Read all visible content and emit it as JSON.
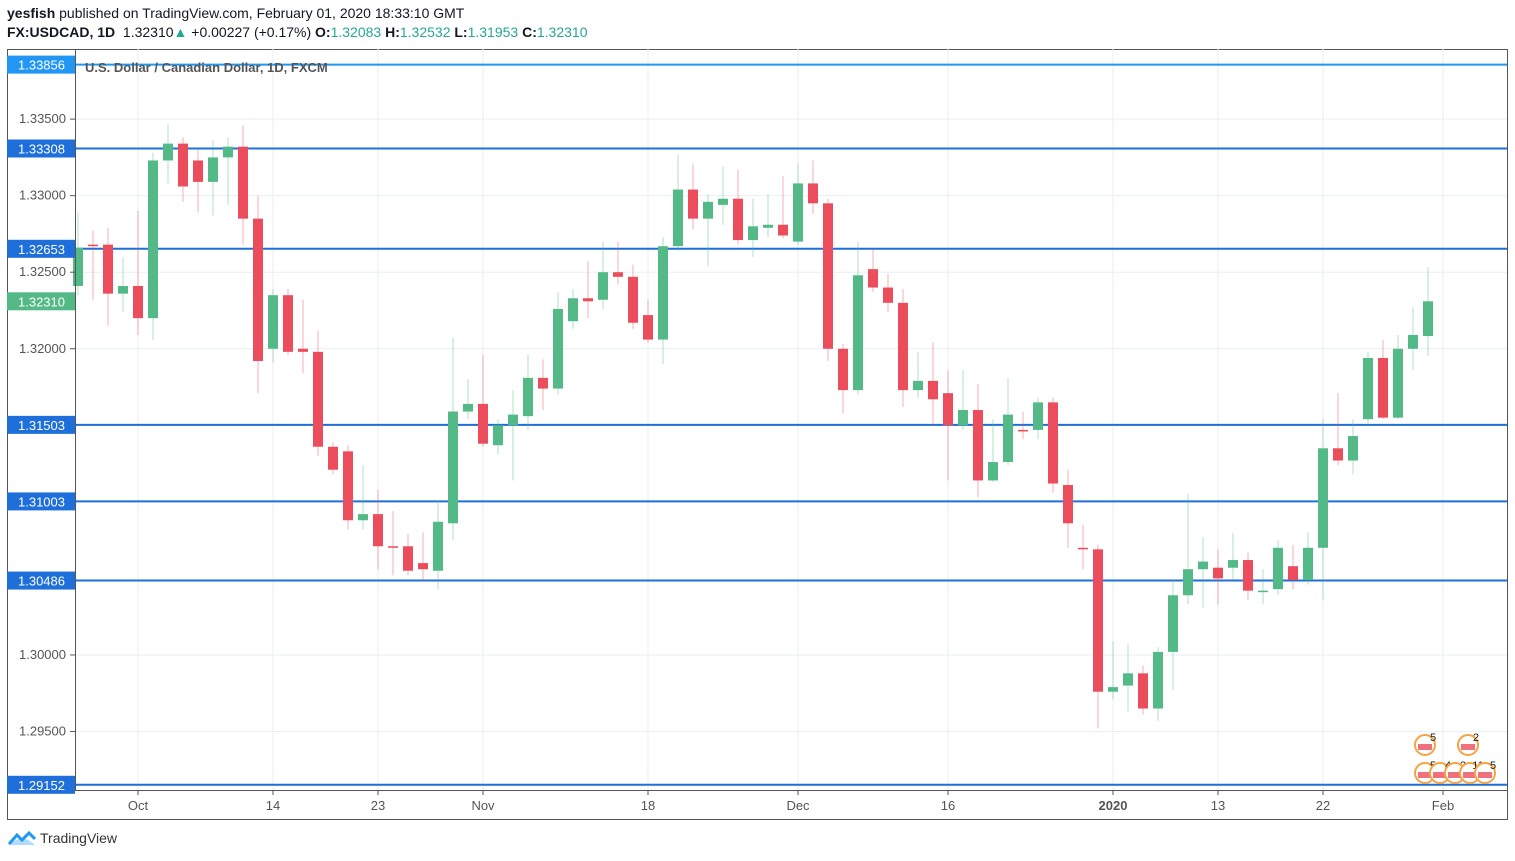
{
  "header": {
    "author": "yesfish",
    "published_text": "published on TradingView.com, February 01, 2020 18:33:10 GMT",
    "symbol": "FX:USDCAD, 1D",
    "last": "1.32310",
    "change": "+0.00227 (+0.17%)",
    "o_label": "O:",
    "o": "1.32083",
    "h_label": "H:",
    "h": "1.32532",
    "l_label": "L:",
    "l": "1.31953",
    "c_label": "C:",
    "c": "1.32310"
  },
  "colors": {
    "up": "#53b987",
    "down": "#eb4d5c",
    "line": "#1e6fd9",
    "label_blue": "#1e6fd9",
    "label_top": "#2196f3",
    "price_label": "#53b987",
    "grid": "#e9eff3"
  },
  "footer": {
    "brand": "TradingView"
  },
  "events": {
    "top": [
      "5",
      "2"
    ],
    "bottom": [
      "5",
      "4",
      "2",
      "11",
      "5"
    ]
  },
  "chart_data": {
    "type": "candlestick",
    "title": "U.S. Dollar / Canadian Dollar, 1D, FXCM",
    "ylim": [
      1.29118,
      1.33958
    ],
    "y_ticks": [
      "1.29500",
      "1.30000",
      "1.32000",
      "1.32500",
      "1.33000",
      "1.33500"
    ],
    "y_tick_values": [
      1.295,
      1.3,
      1.32,
      1.325,
      1.33,
      1.335
    ],
    "x_ticks": [
      {
        "label": "Oct",
        "index": 4
      },
      {
        "label": "14",
        "index": 13
      },
      {
        "label": "23",
        "index": 20
      },
      {
        "label": "Nov",
        "index": 27
      },
      {
        "label": "18",
        "index": 38
      },
      {
        "label": "Dec",
        "index": 48
      },
      {
        "label": "16",
        "index": 58
      },
      {
        "label": "2020",
        "index": 69,
        "bold": true
      },
      {
        "label": "13",
        "index": 76
      },
      {
        "label": "22",
        "index": 83
      },
      {
        "label": "Feb",
        "index": 91
      }
    ],
    "horizontal_lines": [
      {
        "label": "1.33856",
        "value": 1.33856
      },
      {
        "label": "1.33308",
        "value": 1.33308
      },
      {
        "label": "1.32653",
        "value": 1.32653
      },
      {
        "label": "1.31503",
        "value": 1.31503
      },
      {
        "label": "1.31003",
        "value": 1.31003
      },
      {
        "label": "1.30486",
        "value": 1.30486
      },
      {
        "label": "1.29152",
        "value": 1.29152
      }
    ],
    "current_price": {
      "label": "1.32310",
      "value": 1.3231
    },
    "ohlc_fields": [
      "open",
      "high",
      "low",
      "close"
    ],
    "candles": [
      [
        1.3241,
        1.3289,
        1.3235,
        1.3266
      ],
      [
        1.3268,
        1.3277,
        1.3232,
        1.3267
      ],
      [
        1.3268,
        1.3279,
        1.3215,
        1.3236
      ],
      [
        1.3236,
        1.326,
        1.3224,
        1.3241
      ],
      [
        1.3241,
        1.329,
        1.3209,
        1.322
      ],
      [
        1.322,
        1.3328,
        1.3206,
        1.3323
      ],
      [
        1.3323,
        1.3347,
        1.3308,
        1.3334
      ],
      [
        1.3334,
        1.3338,
        1.3296,
        1.3306
      ],
      [
        1.3323,
        1.333,
        1.3289,
        1.3309
      ],
      [
        1.3309,
        1.3336,
        1.3287,
        1.3325
      ],
      [
        1.3325,
        1.3338,
        1.3294,
        1.3332
      ],
      [
        1.3332,
        1.3346,
        1.3268,
        1.3285
      ],
      [
        1.3285,
        1.33,
        1.3171,
        1.3192
      ],
      [
        1.32,
        1.3239,
        1.3191,
        1.3235
      ],
      [
        1.3235,
        1.3239,
        1.3196,
        1.3198
      ],
      [
        1.32,
        1.3232,
        1.3184,
        1.3198
      ],
      [
        1.3198,
        1.3212,
        1.313,
        1.3136
      ],
      [
        1.3136,
        1.3139,
        1.3118,
        1.3121
      ],
      [
        1.3133,
        1.3137,
        1.3082,
        1.3088
      ],
      [
        1.3088,
        1.3124,
        1.3082,
        1.3092
      ],
      [
        1.3092,
        1.3108,
        1.3056,
        1.3071
      ],
      [
        1.3071,
        1.3094,
        1.3052,
        1.307
      ],
      [
        1.3071,
        1.3079,
        1.3052,
        1.3055
      ],
      [
        1.306,
        1.308,
        1.3049,
        1.3056
      ],
      [
        1.3055,
        1.3101,
        1.3043,
        1.3087
      ],
      [
        1.3086,
        1.3207,
        1.3075,
        1.3159
      ],
      [
        1.3159,
        1.318,
        1.3154,
        1.3164
      ],
      [
        1.3164,
        1.3196,
        1.3136,
        1.3138
      ],
      [
        1.3137,
        1.3154,
        1.3131,
        1.315
      ],
      [
        1.315,
        1.3173,
        1.3114,
        1.3157
      ],
      [
        1.3156,
        1.3196,
        1.3147,
        1.3181
      ],
      [
        1.3181,
        1.3193,
        1.316,
        1.3174
      ],
      [
        1.3174,
        1.3237,
        1.317,
        1.3226
      ],
      [
        1.3218,
        1.3239,
        1.3213,
        1.3233
      ],
      [
        1.3233,
        1.3257,
        1.322,
        1.3231
      ],
      [
        1.3232,
        1.327,
        1.3226,
        1.325
      ],
      [
        1.325,
        1.327,
        1.3242,
        1.3247
      ],
      [
        1.3247,
        1.3255,
        1.3213,
        1.3217
      ],
      [
        1.3222,
        1.3232,
        1.3204,
        1.3206
      ],
      [
        1.3206,
        1.3273,
        1.319,
        1.3267
      ],
      [
        1.3267,
        1.3327,
        1.3264,
        1.3304
      ],
      [
        1.3304,
        1.3321,
        1.3278,
        1.3285
      ],
      [
        1.3285,
        1.3301,
        1.3254,
        1.3296
      ],
      [
        1.3294,
        1.3319,
        1.3281,
        1.3298
      ],
      [
        1.3298,
        1.3317,
        1.3268,
        1.3271
      ],
      [
        1.3271,
        1.3298,
        1.326,
        1.328
      ],
      [
        1.3279,
        1.3301,
        1.3273,
        1.3281
      ],
      [
        1.3281,
        1.3313,
        1.3272,
        1.3274
      ],
      [
        1.327,
        1.3321,
        1.3268,
        1.3308
      ],
      [
        1.3308,
        1.3323,
        1.3288,
        1.3295
      ],
      [
        1.3295,
        1.3298,
        1.3192,
        1.32
      ],
      [
        1.32,
        1.3203,
        1.3158,
        1.3173
      ],
      [
        1.3173,
        1.327,
        1.317,
        1.3248
      ],
      [
        1.3252,
        1.3265,
        1.3237,
        1.324
      ],
      [
        1.324,
        1.3249,
        1.3224,
        1.323
      ],
      [
        1.323,
        1.3239,
        1.3162,
        1.3173
      ],
      [
        1.3173,
        1.3198,
        1.3168,
        1.3179
      ],
      [
        1.3179,
        1.3204,
        1.315,
        1.3167
      ],
      [
        1.3171,
        1.3186,
        1.3114,
        1.315
      ],
      [
        1.315,
        1.3186,
        1.3147,
        1.316
      ],
      [
        1.316,
        1.3177,
        1.3103,
        1.3114
      ],
      [
        1.3114,
        1.3154,
        1.3113,
        1.3126
      ],
      [
        1.3126,
        1.3181,
        1.3124,
        1.3157
      ],
      [
        1.3147,
        1.3159,
        1.3141,
        1.3146
      ],
      [
        1.3147,
        1.3168,
        1.3141,
        1.3165
      ],
      [
        1.3165,
        1.3168,
        1.3106,
        1.3112
      ],
      [
        1.3111,
        1.3121,
        1.307,
        1.3086
      ],
      [
        1.307,
        1.3085,
        1.3056,
        1.3069
      ],
      [
        1.3069,
        1.3072,
        1.2952,
        1.2976
      ],
      [
        1.2976,
        1.3009,
        1.2971,
        1.2979
      ],
      [
        1.298,
        1.3007,
        1.2963,
        1.2988
      ],
      [
        1.2988,
        1.2993,
        1.2961,
        1.2965
      ],
      [
        1.2965,
        1.3005,
        1.2957,
        1.3002
      ],
      [
        1.3002,
        1.3049,
        1.2977,
        1.3039
      ],
      [
        1.3039,
        1.3105,
        1.3033,
        1.3056
      ],
      [
        1.3056,
        1.3077,
        1.3031,
        1.3061
      ],
      [
        1.3057,
        1.3069,
        1.3033,
        1.305
      ],
      [
        1.3057,
        1.308,
        1.3049,
        1.3062
      ],
      [
        1.3062,
        1.3067,
        1.3036,
        1.3042
      ],
      [
        1.3042,
        1.3056,
        1.3033,
        1.3042
      ],
      [
        1.3043,
        1.3075,
        1.3039,
        1.307
      ],
      [
        1.3058,
        1.3072,
        1.3043,
        1.3049
      ],
      [
        1.3049,
        1.308,
        1.3046,
        1.307
      ],
      [
        1.307,
        1.3154,
        1.3036,
        1.3135
      ],
      [
        1.3135,
        1.3171,
        1.3124,
        1.3127
      ],
      [
        1.3127,
        1.3154,
        1.3118,
        1.3143
      ],
      [
        1.3154,
        1.3198,
        1.315,
        1.3194
      ],
      [
        1.3194,
        1.3206,
        1.3154,
        1.3155
      ],
      [
        1.3155,
        1.3209,
        1.3154,
        1.32
      ],
      [
        1.32,
        1.3227,
        1.3186,
        1.3209
      ],
      [
        1.32083,
        1.32532,
        1.31953,
        1.3231
      ]
    ]
  }
}
